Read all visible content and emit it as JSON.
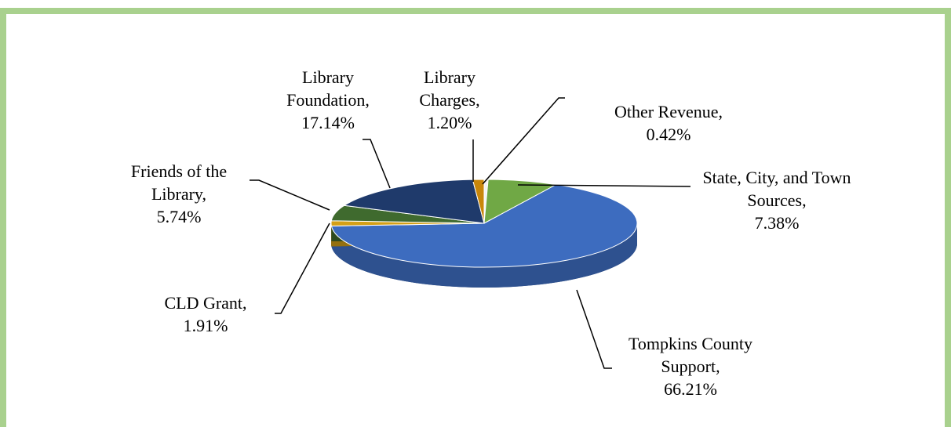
{
  "chart_data": {
    "type": "pie",
    "categories": [
      "Other Revenue,",
      "State, City, and Town Sources,",
      "Tompkins County Support,",
      "CLD Grant,",
      "Friends of the Library,",
      "Library Foundation,",
      "Library Charges,"
    ],
    "values": [
      0.42,
      7.38,
      66.21,
      1.91,
      5.74,
      17.14,
      1.2
    ],
    "value_labels": [
      "0.42%",
      "7.38%",
      "66.21%",
      "1.91%",
      "5.74%",
      "17.14%",
      "1.20%"
    ],
    "colors": [
      "#f2f2f2",
      "#70a845",
      "#3d6cbf",
      "#d4a017",
      "#3f6a2e",
      "#1f3a6b",
      "#c8860a"
    ]
  }
}
